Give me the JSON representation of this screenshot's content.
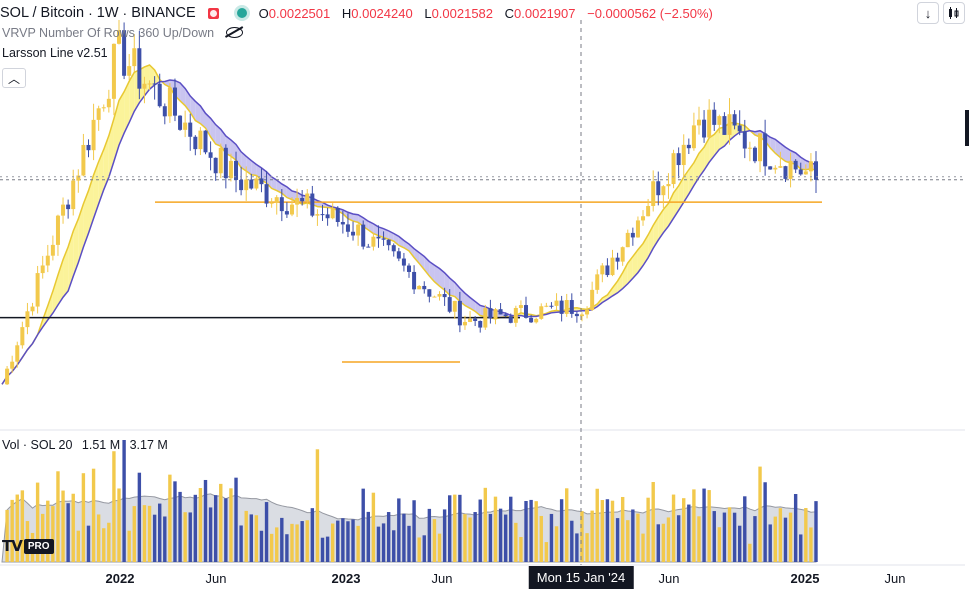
{
  "header": {
    "symbol": "SOL / Bitcoin",
    "interval": "1W",
    "exchange": "BINANCE",
    "sep": "·",
    "open_key": "O",
    "open": "0.0022501",
    "high_key": "H",
    "high": "0.0024240",
    "low_key": "L",
    "low": "0.0021582",
    "close_key": "C",
    "close": "0.0021907",
    "change": "−0.0000562 (−2.50%)"
  },
  "indicators": {
    "vrvp": "VRVP Number Of Rows 360 Up/Down",
    "larsson": "Larsson Line v2.51"
  },
  "volume_legend": {
    "label": "Vol · SOL 20",
    "value1": "1.51 M",
    "value2": "3.17 M"
  },
  "logo": {
    "pro": "PRO"
  },
  "icons": {
    "collapse": "chevron-up-icon",
    "arrow_down": "arrow-down-icon",
    "chart_type": "candles-icon"
  },
  "colors": {
    "up": "#f2c94c",
    "down": "#3d4fa8",
    "band_yellow": "#fbf39a",
    "band_purple": "#c9c4f0",
    "orange_line": "#f5a623",
    "black": "#131722"
  },
  "chart_data": {
    "type": "candlestick",
    "x_axis": {
      "tick_labels": [
        "2022",
        "Jun",
        "2023",
        "Jun",
        "Jun",
        "2025",
        "Jun"
      ],
      "crosshair_label": "Mon 15 Jan '24"
    },
    "y_axis_visible_range_approx": [
      0.0008,
      0.0032
    ],
    "last_close": 0.0021907,
    "horizontal_levels": [
      {
        "name": "orange-resistance",
        "value": 0.00205
      },
      {
        "name": "black-support",
        "value": 0.00132
      },
      {
        "name": "orange-support-2023",
        "value": 0.00104
      }
    ],
    "series": [
      {
        "name": "Larsson Line band",
        "kind": "band"
      },
      {
        "name": "Vol · SOL 20",
        "kind": "volume"
      }
    ],
    "price_path_segments": [
      {
        "period": "late 2021",
        "open": 0.0009,
        "close": 0.003
      },
      {
        "period": "early 2022",
        "open": 0.003,
        "close": 0.0022
      },
      {
        "period": "mid 2022",
        "open": 0.0022,
        "close": 0.0019
      },
      {
        "period": "late 2022",
        "open": 0.0019,
        "close": 0.0013
      },
      {
        "period": "2023",
        "open": 0.0013,
        "close": 0.0014
      },
      {
        "period": "late 2023",
        "open": 0.0014,
        "close": 0.0026
      },
      {
        "period": "2024",
        "open": 0.0026,
        "close": 0.0022
      }
    ]
  }
}
